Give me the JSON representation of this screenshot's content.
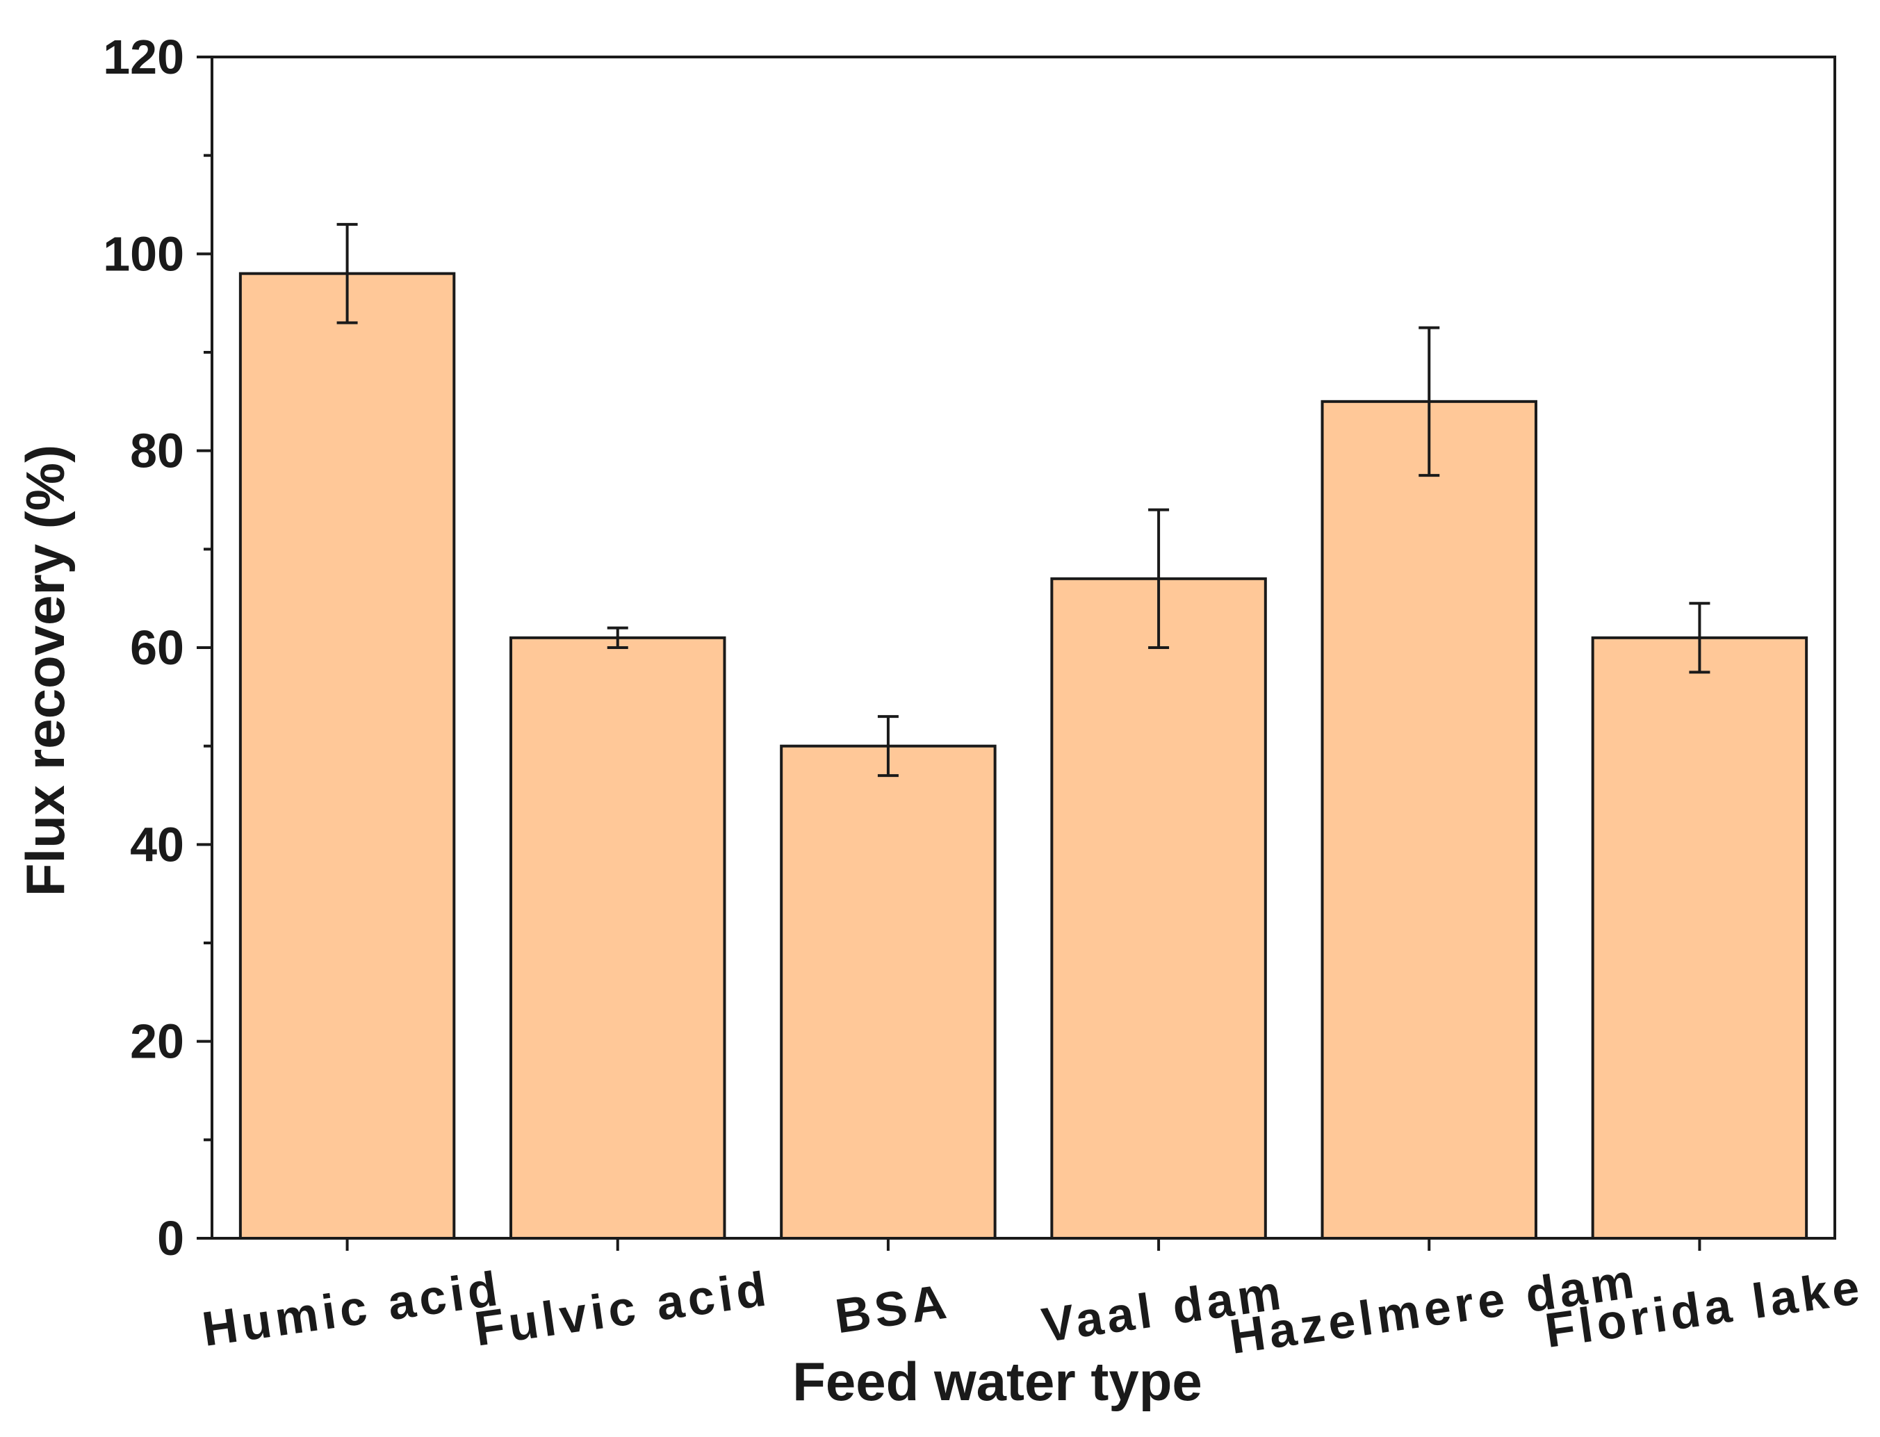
{
  "chart_data": {
    "type": "bar",
    "title": "",
    "xlabel": "Feed water type",
    "ylabel": "Flux recovery (%)",
    "ylim": [
      0,
      120
    ],
    "yticks": [
      "0",
      "20",
      "40",
      "60",
      "80",
      "100",
      "120"
    ],
    "ytick_values": [
      0,
      20,
      40,
      60,
      80,
      100,
      120
    ],
    "categories": [
      "Humic acid",
      "Fulvic acid",
      "BSA",
      "Vaal dam",
      "Hazelmere dam",
      "Florida lake"
    ],
    "values": [
      98,
      61,
      50,
      67,
      85,
      61
    ],
    "errors": [
      5,
      1,
      3,
      7,
      7.5,
      3.5
    ],
    "grid": false,
    "colors": {
      "bar_fill": "#ffc898",
      "bar_edge": "#1a1a1a",
      "axis": "#1a1a1a"
    }
  }
}
